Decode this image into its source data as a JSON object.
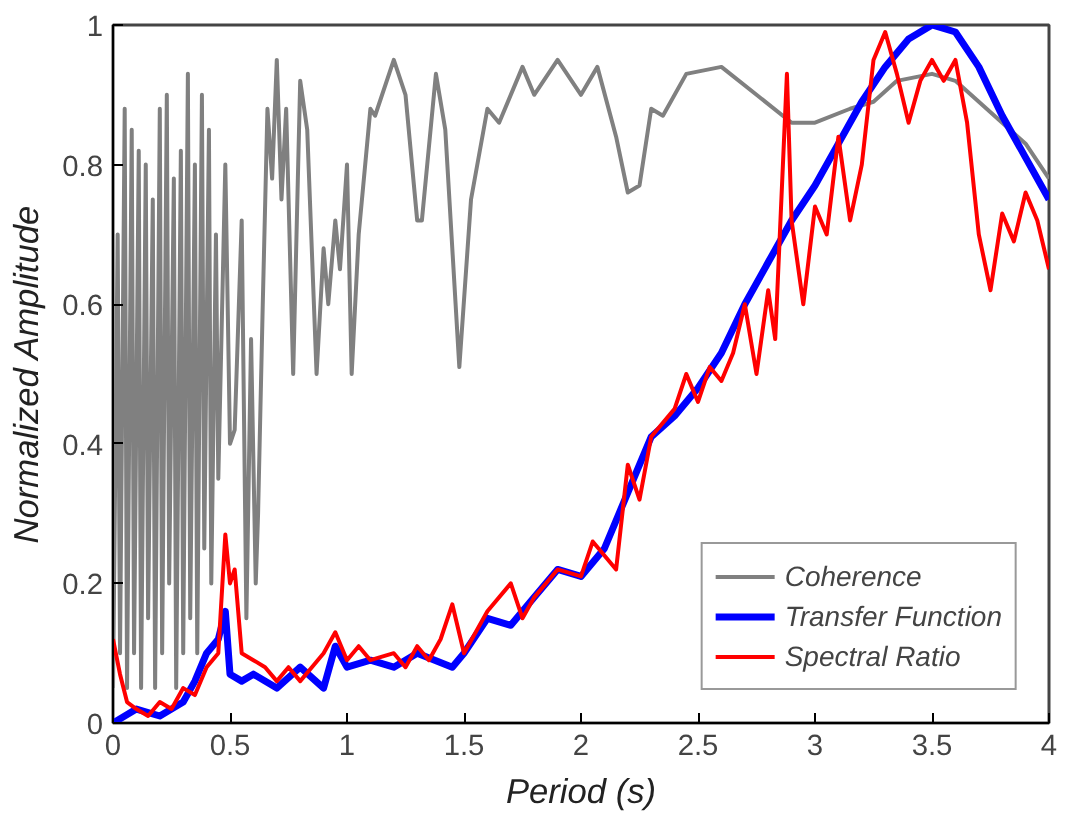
{
  "chart_data": {
    "type": "line",
    "xlabel": "Period (s)",
    "ylabel": "Normalized Amplitude",
    "xlim": [
      0,
      4
    ],
    "ylim": [
      0,
      1
    ],
    "xticks": [
      0,
      0.5,
      1,
      1.5,
      2,
      2.5,
      3,
      3.5,
      4
    ],
    "yticks": [
      0,
      0.2,
      0.4,
      0.6,
      0.8,
      1
    ],
    "grid": false,
    "legend": "bottom right",
    "line_style": "solid",
    "marker": "none",
    "series": [
      {
        "name": "Coherence",
        "color": "#808080",
        "x": [
          0.0,
          0.02,
          0.03,
          0.05,
          0.06,
          0.08,
          0.09,
          0.11,
          0.12,
          0.14,
          0.15,
          0.17,
          0.18,
          0.2,
          0.21,
          0.23,
          0.24,
          0.26,
          0.27,
          0.29,
          0.3,
          0.32,
          0.33,
          0.35,
          0.36,
          0.38,
          0.39,
          0.41,
          0.42,
          0.44,
          0.45,
          0.48,
          0.5,
          0.52,
          0.55,
          0.57,
          0.59,
          0.61,
          0.62,
          0.64,
          0.66,
          0.68,
          0.7,
          0.72,
          0.74,
          0.77,
          0.8,
          0.83,
          0.87,
          0.9,
          0.92,
          0.95,
          0.97,
          1.0,
          1.02,
          1.05,
          1.1,
          1.12,
          1.2,
          1.25,
          1.3,
          1.32,
          1.38,
          1.42,
          1.48,
          1.53,
          1.6,
          1.65,
          1.75,
          1.8,
          1.9,
          2.0,
          2.07,
          2.15,
          2.2,
          2.25,
          2.3,
          2.35,
          2.45,
          2.6,
          2.75,
          2.9,
          3.0,
          3.15,
          3.25,
          3.35,
          3.5,
          3.6,
          3.7,
          3.8,
          3.9,
          4.0
        ],
        "values": [
          0.05,
          0.7,
          0.1,
          0.88,
          0.05,
          0.85,
          0.1,
          0.82,
          0.05,
          0.8,
          0.15,
          0.75,
          0.05,
          0.88,
          0.1,
          0.9,
          0.2,
          0.78,
          0.05,
          0.82,
          0.1,
          0.93,
          0.15,
          0.8,
          0.1,
          0.9,
          0.25,
          0.85,
          0.2,
          0.7,
          0.35,
          0.8,
          0.4,
          0.42,
          0.72,
          0.15,
          0.55,
          0.2,
          0.3,
          0.6,
          0.88,
          0.78,
          0.95,
          0.75,
          0.88,
          0.5,
          0.92,
          0.85,
          0.5,
          0.68,
          0.6,
          0.72,
          0.65,
          0.8,
          0.5,
          0.7,
          0.88,
          0.87,
          0.95,
          0.9,
          0.72,
          0.72,
          0.93,
          0.85,
          0.51,
          0.75,
          0.88,
          0.86,
          0.94,
          0.9,
          0.95,
          0.9,
          0.94,
          0.84,
          0.76,
          0.77,
          0.88,
          0.87,
          0.93,
          0.94,
          0.9,
          0.86,
          0.86,
          0.88,
          0.89,
          0.92,
          0.93,
          0.92,
          0.89,
          0.86,
          0.83,
          0.78
        ]
      },
      {
        "name": "Transfer Function",
        "color": "#0000ff",
        "x": [
          0,
          0.1,
          0.2,
          0.3,
          0.35,
          0.4,
          0.45,
          0.48,
          0.5,
          0.55,
          0.6,
          0.7,
          0.8,
          0.9,
          0.95,
          1.0,
          1.1,
          1.2,
          1.3,
          1.45,
          1.5,
          1.6,
          1.7,
          1.8,
          1.9,
          2.0,
          2.1,
          2.2,
          2.3,
          2.4,
          2.5,
          2.6,
          2.7,
          2.8,
          2.9,
          3.0,
          3.1,
          3.2,
          3.3,
          3.4,
          3.5,
          3.6,
          3.7,
          3.8,
          3.9,
          4.0
        ],
        "values": [
          0.0,
          0.02,
          0.01,
          0.03,
          0.06,
          0.1,
          0.12,
          0.16,
          0.07,
          0.06,
          0.07,
          0.05,
          0.08,
          0.05,
          0.11,
          0.08,
          0.09,
          0.08,
          0.1,
          0.08,
          0.1,
          0.15,
          0.14,
          0.18,
          0.22,
          0.21,
          0.25,
          0.33,
          0.41,
          0.44,
          0.48,
          0.53,
          0.6,
          0.66,
          0.72,
          0.77,
          0.83,
          0.89,
          0.94,
          0.98,
          1.0,
          0.99,
          0.94,
          0.87,
          0.81,
          0.75
        ]
      },
      {
        "name": "Spectral Ratio",
        "color": "#ff0000",
        "x": [
          0,
          0.03,
          0.06,
          0.1,
          0.15,
          0.2,
          0.25,
          0.3,
          0.35,
          0.4,
          0.45,
          0.48,
          0.5,
          0.52,
          0.55,
          0.6,
          0.65,
          0.7,
          0.75,
          0.8,
          0.85,
          0.9,
          0.95,
          1.0,
          1.05,
          1.1,
          1.2,
          1.25,
          1.3,
          1.35,
          1.4,
          1.45,
          1.5,
          1.6,
          1.7,
          1.75,
          1.8,
          1.9,
          2.0,
          2.05,
          2.1,
          2.15,
          2.2,
          2.25,
          2.3,
          2.4,
          2.45,
          2.5,
          2.55,
          2.6,
          2.65,
          2.7,
          2.75,
          2.8,
          2.83,
          2.88,
          2.9,
          2.95,
          3.0,
          3.05,
          3.1,
          3.15,
          3.2,
          3.25,
          3.3,
          3.35,
          3.4,
          3.45,
          3.5,
          3.55,
          3.6,
          3.65,
          3.7,
          3.75,
          3.8,
          3.85,
          3.9,
          3.95,
          4.0
        ],
        "values": [
          0.12,
          0.07,
          0.03,
          0.02,
          0.01,
          0.03,
          0.02,
          0.05,
          0.04,
          0.08,
          0.1,
          0.27,
          0.2,
          0.22,
          0.1,
          0.09,
          0.08,
          0.06,
          0.08,
          0.06,
          0.08,
          0.1,
          0.13,
          0.09,
          0.11,
          0.09,
          0.1,
          0.08,
          0.11,
          0.09,
          0.12,
          0.17,
          0.1,
          0.16,
          0.2,
          0.15,
          0.18,
          0.22,
          0.21,
          0.26,
          0.24,
          0.22,
          0.37,
          0.32,
          0.41,
          0.45,
          0.5,
          0.46,
          0.51,
          0.49,
          0.53,
          0.6,
          0.5,
          0.62,
          0.55,
          0.93,
          0.72,
          0.6,
          0.74,
          0.7,
          0.84,
          0.72,
          0.8,
          0.95,
          0.99,
          0.93,
          0.86,
          0.92,
          0.95,
          0.92,
          0.95,
          0.86,
          0.7,
          0.62,
          0.73,
          0.69,
          0.76,
          0.72,
          0.65
        ]
      }
    ]
  }
}
